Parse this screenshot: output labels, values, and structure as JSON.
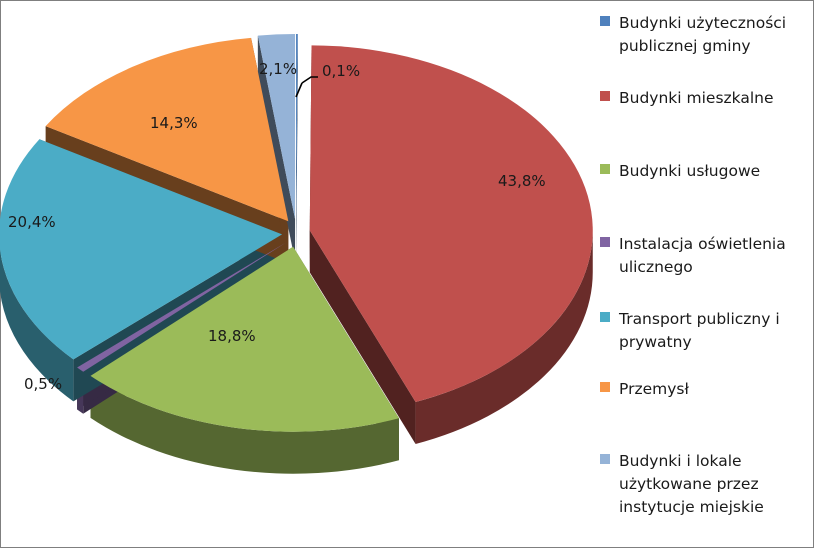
{
  "chart_data": {
    "type": "pie",
    "title": "",
    "slices": [
      {
        "label": "Budynki użyteczności publicznej gminy",
        "value": 0.1,
        "display": "0,1%",
        "color": "#4f81bd"
      },
      {
        "label": "Budynki mieszkalne",
        "value": 43.8,
        "display": "43,8%",
        "color": "#c0504d"
      },
      {
        "label": "Budynki usługowe",
        "value": 18.8,
        "display": "18,8%",
        "color": "#9bbb59"
      },
      {
        "label": "Instalacja oświetlenia ulicznego",
        "value": 0.5,
        "display": "0,5%",
        "color": "#8064a2"
      },
      {
        "label": "Transport publiczny i prywatny",
        "value": 20.4,
        "display": "20,4%",
        "color": "#4bacc6"
      },
      {
        "label": "Przemysł",
        "value": 14.3,
        "display": "14,3%",
        "color": "#f79646"
      },
      {
        "label": "Budynki i lokale użytkowane przez instytucje miejskie",
        "value": 2.1,
        "display": "2,1%",
        "color": "#95b3d7"
      }
    ],
    "style": "3d-exploded",
    "legend_position": "right"
  }
}
